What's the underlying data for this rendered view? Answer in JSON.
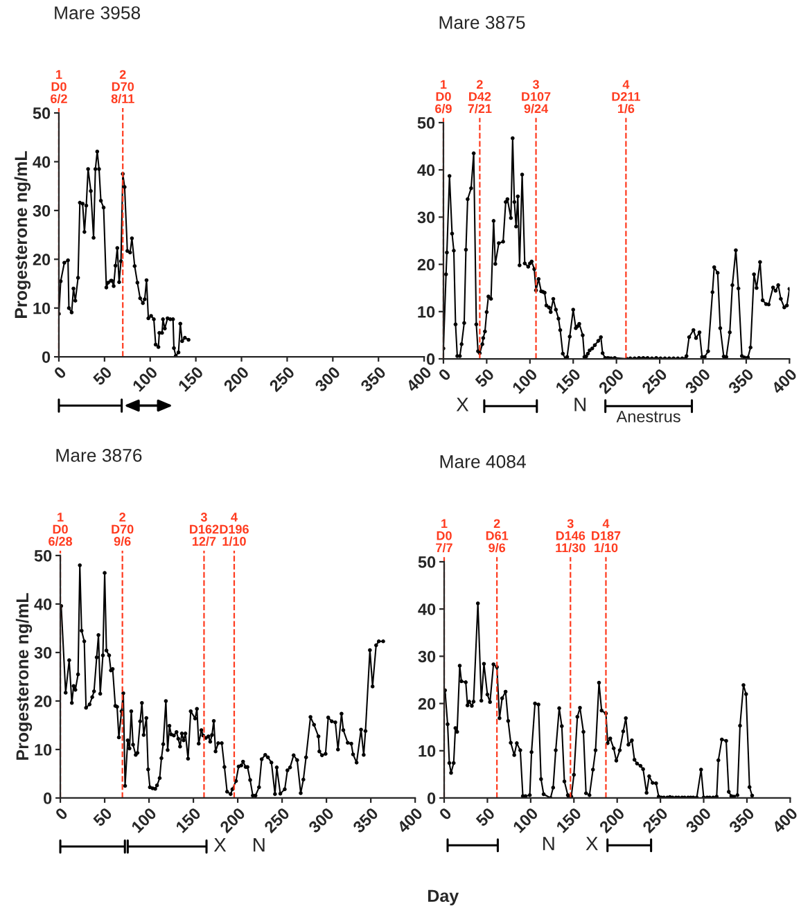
{
  "chart_data": [
    {
      "type": "line",
      "title": "Mare 3958",
      "ylabel": "Progesterone ng/mL",
      "xlim": [
        0,
        400
      ],
      "xticks": [
        0,
        50,
        100,
        150,
        200,
        250,
        300,
        350,
        400
      ],
      "ylim": [
        0,
        50
      ],
      "yticks": [
        0,
        10,
        20,
        30,
        40,
        50
      ],
      "marker": "circle",
      "line_style": "solid",
      "grid": false,
      "x": [
        0,
        2,
        6,
        10,
        11,
        14,
        16,
        18,
        21,
        23,
        26,
        28,
        30,
        32,
        35,
        38,
        40,
        42,
        44,
        46,
        49,
        52,
        54,
        57,
        58,
        60,
        62,
        64,
        66,
        68,
        70,
        72,
        75,
        78,
        80,
        83,
        86,
        89,
        92,
        94,
        96,
        98,
        101,
        104,
        106,
        109,
        110,
        113,
        114,
        116,
        119,
        122,
        125,
        126,
        128,
        131,
        133,
        135,
        138,
        142
      ],
      "series": [
        {
          "color": "#000000",
          "values": [
            8.8,
            15.5,
            19.3,
            19.8,
            10,
            9.1,
            14,
            11.5,
            16.2,
            31.6,
            31.4,
            25.6,
            31,
            38.5,
            34,
            24.4,
            38.5,
            42.1,
            38.5,
            32,
            30.6,
            14.2,
            15.2,
            15.6,
            15.6,
            14.5,
            18.7,
            22.3,
            15.3,
            19.6,
            37.5,
            34.8,
            21.7,
            21.4,
            24.3,
            18.6,
            15.2,
            12,
            11,
            11.8,
            15.7,
            7.9,
            8.4,
            7.7,
            2.5,
            2,
            4.9,
            4.9,
            7.7,
            5.8,
            7.9,
            7.7,
            7.7,
            1.8,
            0.2,
            0.9,
            6.8,
            3.2,
            3.9,
            3.5
          ]
        }
      ],
      "ref_lines": [
        {
          "axis": "x",
          "value": 0,
          "label": "1\nD0\n6/2",
          "color": "#ff3b1f",
          "line_style": "dashed"
        },
        {
          "axis": "x",
          "value": 70,
          "label": "2\nD70\n8/11",
          "color": "#ff3b1f",
          "line_style": "dashed"
        }
      ]
    },
    {
      "type": "line",
      "title": "Mare 3875",
      "xlim": [
        0,
        400
      ],
      "xticks": [
        0,
        50,
        100,
        150,
        200,
        250,
        300,
        350,
        400
      ],
      "ylim": [
        0,
        50
      ],
      "yticks": [
        0,
        10,
        20,
        30,
        40,
        50
      ],
      "marker": "circle",
      "line_style": "solid",
      "grid": false,
      "x": [
        0,
        3,
        4,
        7,
        10,
        12,
        14,
        16,
        19,
        21,
        24,
        26,
        28,
        32,
        35,
        38,
        40,
        42,
        45,
        46,
        48,
        50,
        52,
        55,
        58,
        60,
        64,
        69,
        72,
        74,
        78,
        80,
        82,
        84,
        86,
        88,
        91,
        94,
        98,
        100,
        102,
        105,
        107,
        110,
        113,
        115,
        117,
        119,
        122,
        124,
        127,
        130,
        133,
        135,
        138,
        141,
        143,
        146,
        150,
        153,
        155,
        157,
        161,
        163,
        165,
        167,
        169,
        172,
        175,
        179,
        182,
        184,
        187,
        190,
        192,
        194,
        198,
        212,
        216,
        221,
        226,
        231,
        236,
        241,
        246,
        251,
        256,
        261,
        266,
        271,
        276,
        280,
        281,
        284,
        289,
        292,
        296,
        299,
        302,
        306,
        311,
        313,
        317,
        320,
        324,
        327,
        331,
        334,
        338,
        341,
        345,
        348,
        352,
        355,
        359,
        362,
        366,
        369,
        373,
        376,
        381,
        384,
        387,
        390,
        394,
        397,
        400
      ],
      "series": [
        {
          "color": "#000000",
          "values": [
            2.2,
            17.9,
            22.5,
            38.7,
            26.5,
            22.9,
            7.3,
            0.6,
            0.6,
            3.1,
            7.6,
            23.1,
            33.8,
            36.1,
            43.5,
            7.3,
            1.6,
            1.2,
            3.1,
            4.4,
            5.8,
            9.9,
            13.2,
            12.7,
            29.2,
            20.1,
            24.5,
            24.8,
            33.2,
            33.8,
            29.8,
            46.7,
            33.2,
            28,
            34.4,
            19.8,
            39,
            20.2,
            19.5,
            20.2,
            20.6,
            19,
            14.5,
            16.9,
            14.3,
            14.2,
            14,
            11.3,
            10.9,
            9.9,
            12.7,
            10.4,
            8.5,
            6.1,
            1.1,
            0,
            0.4,
            4.7,
            10.4,
            6.5,
            6.9,
            7.4,
            5,
            0.4,
            0.5,
            1.1,
            1.8,
            2.2,
            2.9,
            3.8,
            4.6,
            1.2,
            0.2,
            0.2,
            0.1,
            0.1,
            0.2,
            0,
            0.1,
            0.1,
            0.2,
            0.2,
            0.2,
            0.1,
            0.2,
            0.1,
            0.1,
            0.1,
            0.1,
            0.1,
            0.1,
            0.1,
            0.6,
            4.6,
            6.1,
            4.4,
            5.6,
            0.4,
            0.4,
            1.6,
            14.1,
            19.4,
            18.2,
            6.5,
            0.5,
            0.4,
            5.6,
            15.6,
            23,
            14.9,
            0.6,
            0.3,
            0.3,
            2.4,
            17.9,
            15,
            20.5,
            12.4,
            11.6,
            11.5,
            15.1,
            14.4,
            15.6,
            12.7,
            10.9,
            11.3,
            14.8
          ]
        }
      ],
      "ref_lines": [
        {
          "axis": "x",
          "value": 0,
          "label": "1\nD0\n6/9",
          "color": "#ff3b1f",
          "line_style": "dashed"
        },
        {
          "axis": "x",
          "value": 42,
          "label": "2\nD42\n7/21",
          "color": "#ff3b1f",
          "line_style": "dashed"
        },
        {
          "axis": "x",
          "value": 107,
          "label": "3\nD107\n9/24",
          "color": "#ff3b1f",
          "line_style": "dashed"
        },
        {
          "axis": "x",
          "value": 211,
          "label": "4\nD211\n1/6",
          "color": "#ff3b1f",
          "line_style": "dashed"
        }
      ],
      "annotations": [
        "X",
        "N",
        "Anestrus"
      ]
    },
    {
      "type": "line",
      "title": "Mare 3876",
      "ylabel": "Progesterone ng/mL",
      "xlabel": "Day",
      "xlim": [
        0,
        400
      ],
      "xticks": [
        0,
        50,
        100,
        150,
        200,
        250,
        300,
        350,
        400
      ],
      "ylim": [
        0,
        50
      ],
      "yticks": [
        0,
        10,
        20,
        30,
        40,
        50
      ],
      "marker": "circle",
      "line_style": "solid",
      "grid": false,
      "x": [
        1,
        6,
        10,
        13,
        15,
        17,
        20,
        22,
        24,
        27,
        29,
        33,
        36,
        38,
        41,
        43,
        45,
        48,
        50,
        52,
        55,
        57,
        59,
        62,
        64,
        66,
        69,
        71,
        73,
        76,
        78,
        80,
        82,
        85,
        87,
        90,
        92,
        94,
        97,
        99,
        101,
        104,
        107,
        109,
        112,
        114,
        116,
        119,
        121,
        123,
        125,
        128,
        131,
        133,
        135,
        137,
        139,
        141,
        144,
        147,
        152,
        154,
        156,
        159,
        161,
        164,
        167,
        169,
        171,
        173,
        175,
        178,
        182,
        185,
        188,
        192,
        194,
        198,
        201,
        204,
        206,
        209,
        211,
        214,
        217,
        220,
        224,
        227,
        231,
        234,
        238,
        242,
        244,
        248,
        253,
        256,
        259,
        263,
        267,
        271,
        274,
        277,
        282,
        286,
        291,
        292,
        295,
        299,
        302,
        306,
        310,
        313,
        317,
        319,
        324,
        328,
        330,
        334,
        339,
        342,
        344,
        349,
        352,
        356,
        359,
        364
      ],
      "series": [
        {
          "color": "#000000",
          "values": [
            39.6,
            21.7,
            28.4,
            19.6,
            23.1,
            22.3,
            25.5,
            48,
            34.5,
            32.3,
            18.6,
            19.3,
            20.8,
            22,
            29,
            33.6,
            21.5,
            29.4,
            46.4,
            30.4,
            29.4,
            26.3,
            26.6,
            19,
            18.8,
            12.5,
            17.9,
            21.6,
            2.5,
            11.9,
            10.2,
            17.9,
            11,
            8.9,
            9.3,
            15.8,
            19.6,
            13,
            16.5,
            5.9,
            2.2,
            2,
            1.9,
            2.6,
            4.1,
            8.2,
            11.1,
            20,
            9.9,
            14.9,
            13.1,
            12.9,
            13.6,
            12.2,
            10.6,
            13.3,
            11.9,
            13.3,
            8.1,
            17.9,
            16.4,
            18.4,
            11.2,
            14,
            12.9,
            12.4,
            12.7,
            11.6,
            13,
            15.9,
            9.6,
            11.3,
            11.3,
            6.4,
            1.3,
            0.8,
            1.8,
            3.5,
            6.5,
            6.7,
            7.5,
            6.4,
            6.4,
            3.7,
            0.5,
            0.5,
            2.2,
            8,
            8.9,
            8.4,
            7.3,
            0.8,
            6.3,
            0.9,
            1.8,
            5.7,
            6.3,
            8.8,
            7.8,
            1,
            3.8,
            8.4,
            16.7,
            15.1,
            12.7,
            9.6,
            8.8,
            9.1,
            16.6,
            15.8,
            15.6,
            10,
            17.4,
            14,
            11.4,
            11.2,
            9,
            7.3,
            14.1,
            8.9,
            13.8,
            30.5,
            23,
            31.5,
            32.3,
            32.3
          ]
        }
      ],
      "ref_lines": [
        {
          "axis": "x",
          "value": 0,
          "label": "1\nD0\n6/28",
          "color": "#ff3b1f",
          "line_style": "dashed"
        },
        {
          "axis": "x",
          "value": 70,
          "label": "2\nD70\n9/6",
          "color": "#ff3b1f",
          "line_style": "dashed"
        },
        {
          "axis": "x",
          "value": 162,
          "label": "3\nD162\n12/7",
          "color": "#ff3b1f",
          "line_style": "dashed"
        },
        {
          "axis": "x",
          "value": 196,
          "label": "4\nD196\n1/10",
          "color": "#ff3b1f",
          "line_style": "dashed"
        }
      ],
      "annotations": [
        "X",
        "N"
      ]
    },
    {
      "type": "line",
      "title": "Mare 4084",
      "xlim": [
        0,
        400
      ],
      "xticks": [
        0,
        50,
        100,
        150,
        200,
        250,
        300,
        350,
        400
      ],
      "ylim": [
        0,
        50
      ],
      "yticks": [
        0,
        10,
        20,
        30,
        40,
        50
      ],
      "marker": "circle",
      "line_style": "solid",
      "grid": false,
      "x": [
        0,
        1,
        4,
        6,
        8,
        11,
        13,
        15,
        18,
        20,
        25,
        27,
        29,
        32,
        34,
        39,
        43,
        46,
        50,
        53,
        57,
        61,
        64,
        67,
        71,
        74,
        77,
        81,
        84,
        88,
        91,
        94,
        99,
        101,
        105,
        109,
        112,
        115,
        123,
        126,
        129,
        133,
        136,
        139,
        143,
        144,
        147,
        150,
        154,
        157,
        161,
        164,
        168,
        172,
        175,
        179,
        182,
        187,
        189,
        192,
        196,
        199,
        203,
        207,
        210,
        213,
        217,
        220,
        223,
        227,
        230,
        234,
        237,
        241,
        245,
        248,
        251,
        254,
        258,
        261,
        264,
        268,
        271,
        275,
        278,
        282,
        285,
        288,
        292,
        297,
        300,
        304,
        307,
        311,
        315,
        317,
        321,
        326,
        329,
        332,
        335,
        339,
        342,
        346,
        349,
        353,
        356
      ],
      "series": [
        {
          "color": "#000000",
          "values": [
            21.8,
            22.8,
            15.6,
            7.4,
            5.3,
            7.4,
            14.8,
            14,
            28,
            24.7,
            24.5,
            19.6,
            20.4,
            19.5,
            20.4,
            41.2,
            20.6,
            28.4,
            21.9,
            20.3,
            28.3,
            27.7,
            16.9,
            21.1,
            22.5,
            16.3,
            11.7,
            9.1,
            11.6,
            10.1,
            0.4,
            0.4,
            0.6,
            9.7,
            20,
            19.8,
            4,
            0.8,
            0,
            2.2,
            10.1,
            19,
            15.2,
            3.5,
            0.6,
            0.3,
            0.3,
            4.9,
            17.2,
            19.1,
            14,
            1,
            0.6,
            6,
            10.1,
            24.4,
            18.5,
            17.9,
            11.6,
            12.6,
            10.5,
            7.9,
            10.1,
            14.1,
            16.9,
            11.3,
            12.2,
            8.1,
            7.3,
            6.8,
            6.1,
            1.1,
            4.6,
            3.2,
            3.1,
            0.3,
            0.1,
            0.1,
            0.1,
            0.2,
            0.1,
            0.1,
            0.1,
            0.1,
            0.1,
            0.1,
            0.1,
            0.1,
            0.1,
            6,
            0.1,
            0.1,
            0.1,
            0.1,
            0.3,
            8,
            12.4,
            12.1,
            1.3,
            0.4,
            0.3,
            0.6,
            15.3,
            23.9,
            22,
            2.3,
            0.5
          ]
        }
      ],
      "ref_lines": [
        {
          "axis": "x",
          "value": 0,
          "label": "1\nD0\n7/7",
          "color": "#ff3b1f",
          "line_style": "dashed"
        },
        {
          "axis": "x",
          "value": 61,
          "label": "2\nD61\n9/6",
          "color": "#ff3b1f",
          "line_style": "dashed"
        },
        {
          "axis": "x",
          "value": 146,
          "label": "3\nD146\n11/30",
          "color": "#ff3b1f",
          "line_style": "dashed"
        },
        {
          "axis": "x",
          "value": 187,
          "label": "4\nD187\n1/10",
          "color": "#ff3b1f",
          "line_style": "dashed"
        }
      ],
      "annotations": [
        "N",
        "X"
      ]
    }
  ]
}
